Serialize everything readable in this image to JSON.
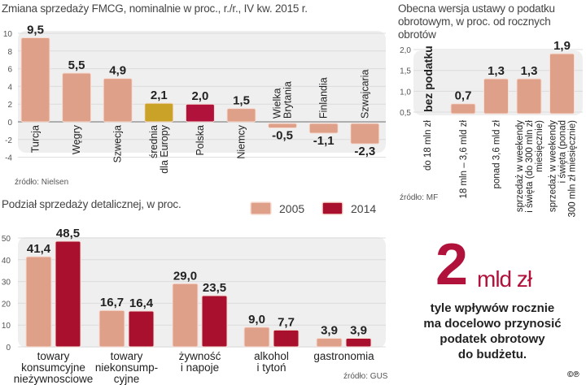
{
  "chart_data": [
    {
      "type": "bar",
      "title": "Zmiana sprzedaży FMCG, nominalnie w proc., r./r., IV kw. 2015 r.",
      "source": "źródło: Nielsen",
      "categories": [
        "Turcja",
        "Węgry",
        "Szwecja",
        "średnia dla Europy",
        "Polska",
        "Niemcy",
        "Wielka Brytania",
        "Finlandia",
        "Szwajcaria"
      ],
      "values": [
        9.5,
        5.5,
        4.9,
        2.1,
        2.0,
        1.5,
        -0.5,
        -1.1,
        -2.3
      ],
      "value_labels": [
        "9,5",
        "5,5",
        "4,9",
        "2,1",
        "2,0",
        "1,5",
        "-0,5",
        "-1,1",
        "-2,3"
      ],
      "highlight": {
        "średnia dla Europy": "#c9a227",
        "Polska": "#b1123b"
      },
      "default_color": "#dfa08a",
      "yticks": [
        10,
        8,
        6,
        4,
        2,
        0,
        -2,
        -4
      ],
      "ylim": [
        -4,
        10
      ],
      "grid": true
    },
    {
      "type": "bar",
      "title": "Obecna wersja ustawy o podatku obrotowym, w proc. od rocznych obrotów",
      "source": "źródło: MF",
      "categories": [
        "do 18 mln zł",
        "18 mln – 3,6 mld zł",
        "ponad 3,6 mld zł",
        "sprzedaż w weekendy i święta (do 300 mln zł miesięcznie)",
        "sprzedaż w weekendy i święta (ponad 300 mln zł miesięcznie)"
      ],
      "category_lines": [
        [
          "do 18 mln zł"
        ],
        [
          "18 mln – 3,6 mld zł"
        ],
        [
          "ponad 3,6 mld zł"
        ],
        [
          "sprzedaż w weekendy",
          "i święta (do 300 mln zł",
          "miesięcznie)"
        ],
        [
          "sprzedaż w weekendy",
          "i święta (ponad",
          "300 mln zł miesięcznie)"
        ]
      ],
      "values": [
        null,
        0.7,
        1.3,
        1.3,
        1.9
      ],
      "value_labels": [
        "bez podatku",
        "0,7",
        "1,3",
        "1,3",
        "1,9"
      ],
      "color": "#dfa08a",
      "yticks": [
        2.0,
        1.5,
        1.0,
        0.5
      ],
      "ytick_labels": [
        "2,0",
        "1,5",
        "1,0",
        "0,5"
      ],
      "ylim": [
        0.5,
        2.0
      ],
      "grid": true
    },
    {
      "type": "bar",
      "title": "Podział sprzedaży detalicznej, w proc.",
      "source": "źródło: GUS",
      "legend": "top-right",
      "categories": [
        "towary konsumcyjne nieżywnosciowe",
        "towary niekonsumpcyjne",
        "żywność i napoje",
        "alkohol i tytoń",
        "gastronomia"
      ],
      "category_lines": [
        [
          "towary",
          "konsumcyjne",
          "nieżywnosciowe"
        ],
        [
          "towary",
          "niekonsump-",
          "cyjne"
        ],
        [
          "żywność",
          "i napoje"
        ],
        [
          "alkohol",
          "i tytoń"
        ],
        [
          "gastronomia"
        ]
      ],
      "series": [
        {
          "name": "2005",
          "color": "#dfa08a",
          "values": [
            41.4,
            16.7,
            29.0,
            9.0,
            3.9
          ],
          "value_labels": [
            "41,4",
            "16,7",
            "29,0",
            "9,0",
            "3,9"
          ]
        },
        {
          "name": "2014",
          "color": "#a8102e",
          "values": [
            48.5,
            16.4,
            23.5,
            7.7,
            3.9
          ],
          "value_labels": [
            "48,5",
            "16,4",
            "23,5",
            "7,7",
            "3,9"
          ]
        }
      ],
      "yticks": [
        50,
        40,
        30,
        20,
        10,
        0
      ],
      "ylim": [
        0,
        50
      ],
      "grid": true
    }
  ],
  "callout": {
    "number": "2",
    "unit": "mld zł",
    "text_lines": [
      "tyle wpływów rocznie",
      "ma docelowo przynosić",
      "podatek obrotowy",
      "do budżetu."
    ]
  },
  "copyright": "©℗"
}
